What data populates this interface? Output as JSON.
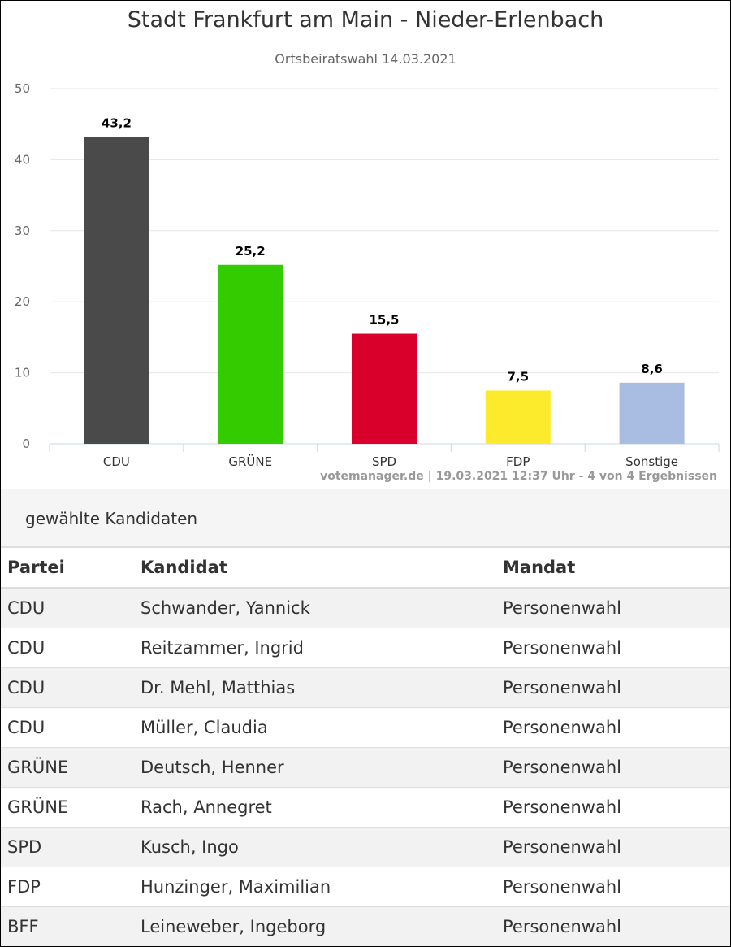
{
  "chart_data": {
    "type": "bar",
    "title": "Stadt Frankfurt am Main - Nieder-Erlenbach",
    "subtitle": "Ortsbeiratswahl 14.03.2021",
    "categories": [
      "CDU",
      "GRÜNE",
      "SPD",
      "FDP",
      "Sonstige"
    ],
    "values": [
      43.2,
      25.2,
      15.5,
      7.5,
      8.6
    ],
    "data_labels": [
      "43,2",
      "25,2",
      "15,5",
      "7,5",
      "8,6"
    ],
    "colors": [
      "#4a4a4a",
      "#33cc00",
      "#d9002b",
      "#fbeb2c",
      "#a9bde3"
    ],
    "ylim": [
      0,
      50
    ],
    "yticks": [
      0,
      10,
      20,
      30,
      40,
      50
    ],
    "grid": true,
    "xlabel": "",
    "ylabel": "",
    "credit": "votemanager.de | 19.03.2021 12:37 Uhr - 4 von 4 Ergebnissen"
  },
  "table": {
    "heading": "gewählte Kandidaten",
    "columns": [
      "Partei",
      "Kandidat",
      "Mandat"
    ],
    "rows": [
      [
        "CDU",
        "Schwander, Yannick",
        "Personenwahl"
      ],
      [
        "CDU",
        "Reitzammer, Ingrid",
        "Personenwahl"
      ],
      [
        "CDU",
        "Dr. Mehl, Matthias",
        "Personenwahl"
      ],
      [
        "CDU",
        "Müller, Claudia",
        "Personenwahl"
      ],
      [
        "GRÜNE",
        "Deutsch, Henner",
        "Personenwahl"
      ],
      [
        "GRÜNE",
        "Rach, Annegret",
        "Personenwahl"
      ],
      [
        "SPD",
        "Kusch, Ingo",
        "Personenwahl"
      ],
      [
        "FDP",
        "Hunzinger, Maximilian",
        "Personenwahl"
      ],
      [
        "BFF",
        "Leineweber, Ingeborg",
        "Personenwahl"
      ]
    ]
  }
}
